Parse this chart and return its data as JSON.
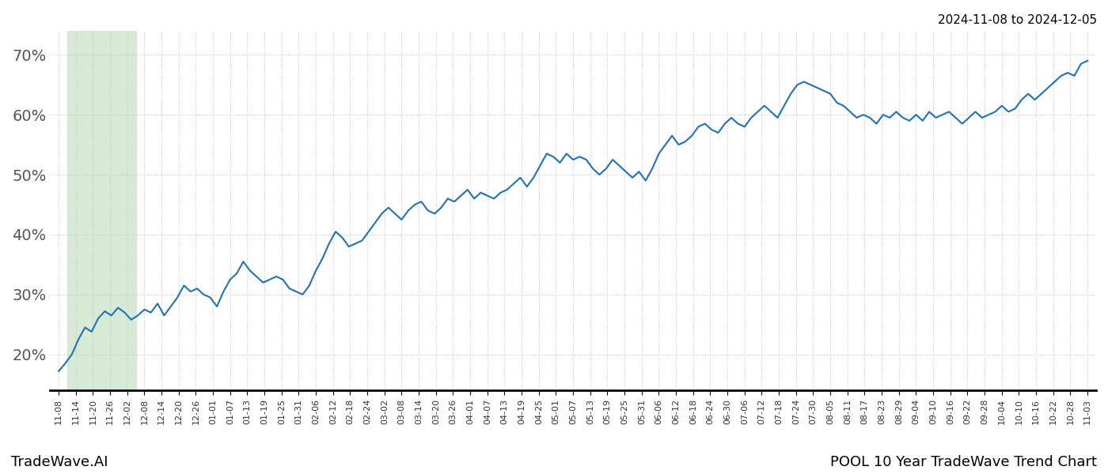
{
  "title_top_right": "2024-11-08 to 2024-12-05",
  "title_bottom_left": "TradeWave.AI",
  "title_bottom_right": "POOL 10 Year TradeWave Trend Chart",
  "line_color": "#2171b5",
  "line_width": 1.5,
  "highlight_color": "#d6ead6",
  "background_color": "#ffffff",
  "grid_color": "#c8c8c8",
  "ylim": [
    14,
    74
  ],
  "yticks": [
    20,
    30,
    40,
    50,
    60,
    70
  ],
  "ytick_labels": [
    "20%",
    "30%",
    "40%",
    "50%",
    "60%",
    "70%"
  ],
  "xtick_labels": [
    "11-08",
    "11-14",
    "11-20",
    "11-26",
    "12-02",
    "12-08",
    "12-14",
    "12-20",
    "12-26",
    "01-01",
    "01-07",
    "01-13",
    "01-19",
    "01-25",
    "01-31",
    "02-06",
    "02-12",
    "02-18",
    "02-24",
    "03-02",
    "03-08",
    "03-14",
    "03-20",
    "03-26",
    "04-01",
    "04-07",
    "04-13",
    "04-19",
    "04-25",
    "05-01",
    "05-07",
    "05-13",
    "05-19",
    "05-25",
    "05-31",
    "06-06",
    "06-12",
    "06-18",
    "06-24",
    "06-30",
    "07-06",
    "07-12",
    "07-18",
    "07-24",
    "07-30",
    "08-05",
    "08-11",
    "08-17",
    "08-23",
    "08-29",
    "09-04",
    "09-10",
    "09-16",
    "09-22",
    "09-28",
    "10-04",
    "10-10",
    "10-16",
    "10-22",
    "10-28",
    "11-03"
  ],
  "highlight_start_label": "11-14",
  "highlight_end_label": "12-02",
  "y_values": [
    17.2,
    18.5,
    20.0,
    22.5,
    24.5,
    23.8,
    26.0,
    27.2,
    26.5,
    27.8,
    27.0,
    25.8,
    26.5,
    27.5,
    27.0,
    28.5,
    26.5,
    28.0,
    29.5,
    31.5,
    30.5,
    31.0,
    30.0,
    29.5,
    28.0,
    30.5,
    32.5,
    33.5,
    35.5,
    34.0,
    33.0,
    32.0,
    32.5,
    33.0,
    32.5,
    31.0,
    30.5,
    30.0,
    31.5,
    34.0,
    36.0,
    38.5,
    40.5,
    39.5,
    38.0,
    38.5,
    39.0,
    40.5,
    42.0,
    43.5,
    44.5,
    43.5,
    42.5,
    44.0,
    45.0,
    45.5,
    44.0,
    43.5,
    44.5,
    46.0,
    45.5,
    46.5,
    47.5,
    46.0,
    47.0,
    46.5,
    46.0,
    47.0,
    47.5,
    48.5,
    49.5,
    48.0,
    49.5,
    51.5,
    53.5,
    53.0,
    52.0,
    53.5,
    52.5,
    53.0,
    52.5,
    51.0,
    50.0,
    51.0,
    52.5,
    51.5,
    50.5,
    49.5,
    50.5,
    49.0,
    51.0,
    53.5,
    55.0,
    56.5,
    55.0,
    55.5,
    56.5,
    58.0,
    58.5,
    57.5,
    57.0,
    58.5,
    59.5,
    58.5,
    58.0,
    59.5,
    60.5,
    61.5,
    60.5,
    59.5,
    61.5,
    63.5,
    65.0,
    65.5,
    65.0,
    64.5,
    64.0,
    63.5,
    62.0,
    61.5,
    60.5,
    59.5,
    60.0,
    59.5,
    58.5,
    60.0,
    59.5,
    60.5,
    59.5,
    59.0,
    60.0,
    59.0,
    60.5,
    59.5,
    60.0,
    60.5,
    59.5,
    58.5,
    59.5,
    60.5,
    59.5,
    60.0,
    60.5,
    61.5,
    60.5,
    61.0,
    62.5,
    63.5,
    62.5,
    63.5,
    64.5,
    65.5,
    66.5,
    67.0,
    66.5,
    68.5,
    69.0
  ]
}
